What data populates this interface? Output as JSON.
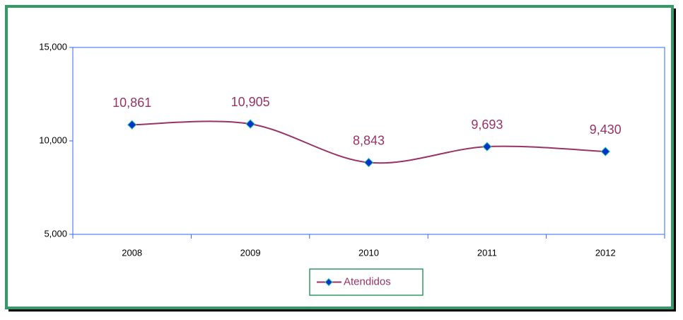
{
  "chart_data": {
    "type": "line",
    "categories": [
      "2008",
      "2009",
      "2010",
      "2011",
      "2012"
    ],
    "series": [
      {
        "name": "Atendidos",
        "color": "#993366",
        "values": [
          10861,
          10905,
          8843,
          9693,
          9430
        ],
        "value_labels": [
          "10,861",
          "10,905",
          "8,843",
          "9,693",
          "9,430"
        ]
      }
    ],
    "ylim": [
      5000,
      15000
    ],
    "yticks": [
      {
        "value": 5000,
        "label": "5,000"
      },
      {
        "value": 10000,
        "label": "10,000"
      },
      {
        "value": 15000,
        "label": "15,000"
      }
    ],
    "legend": "bottom",
    "grid": false
  }
}
